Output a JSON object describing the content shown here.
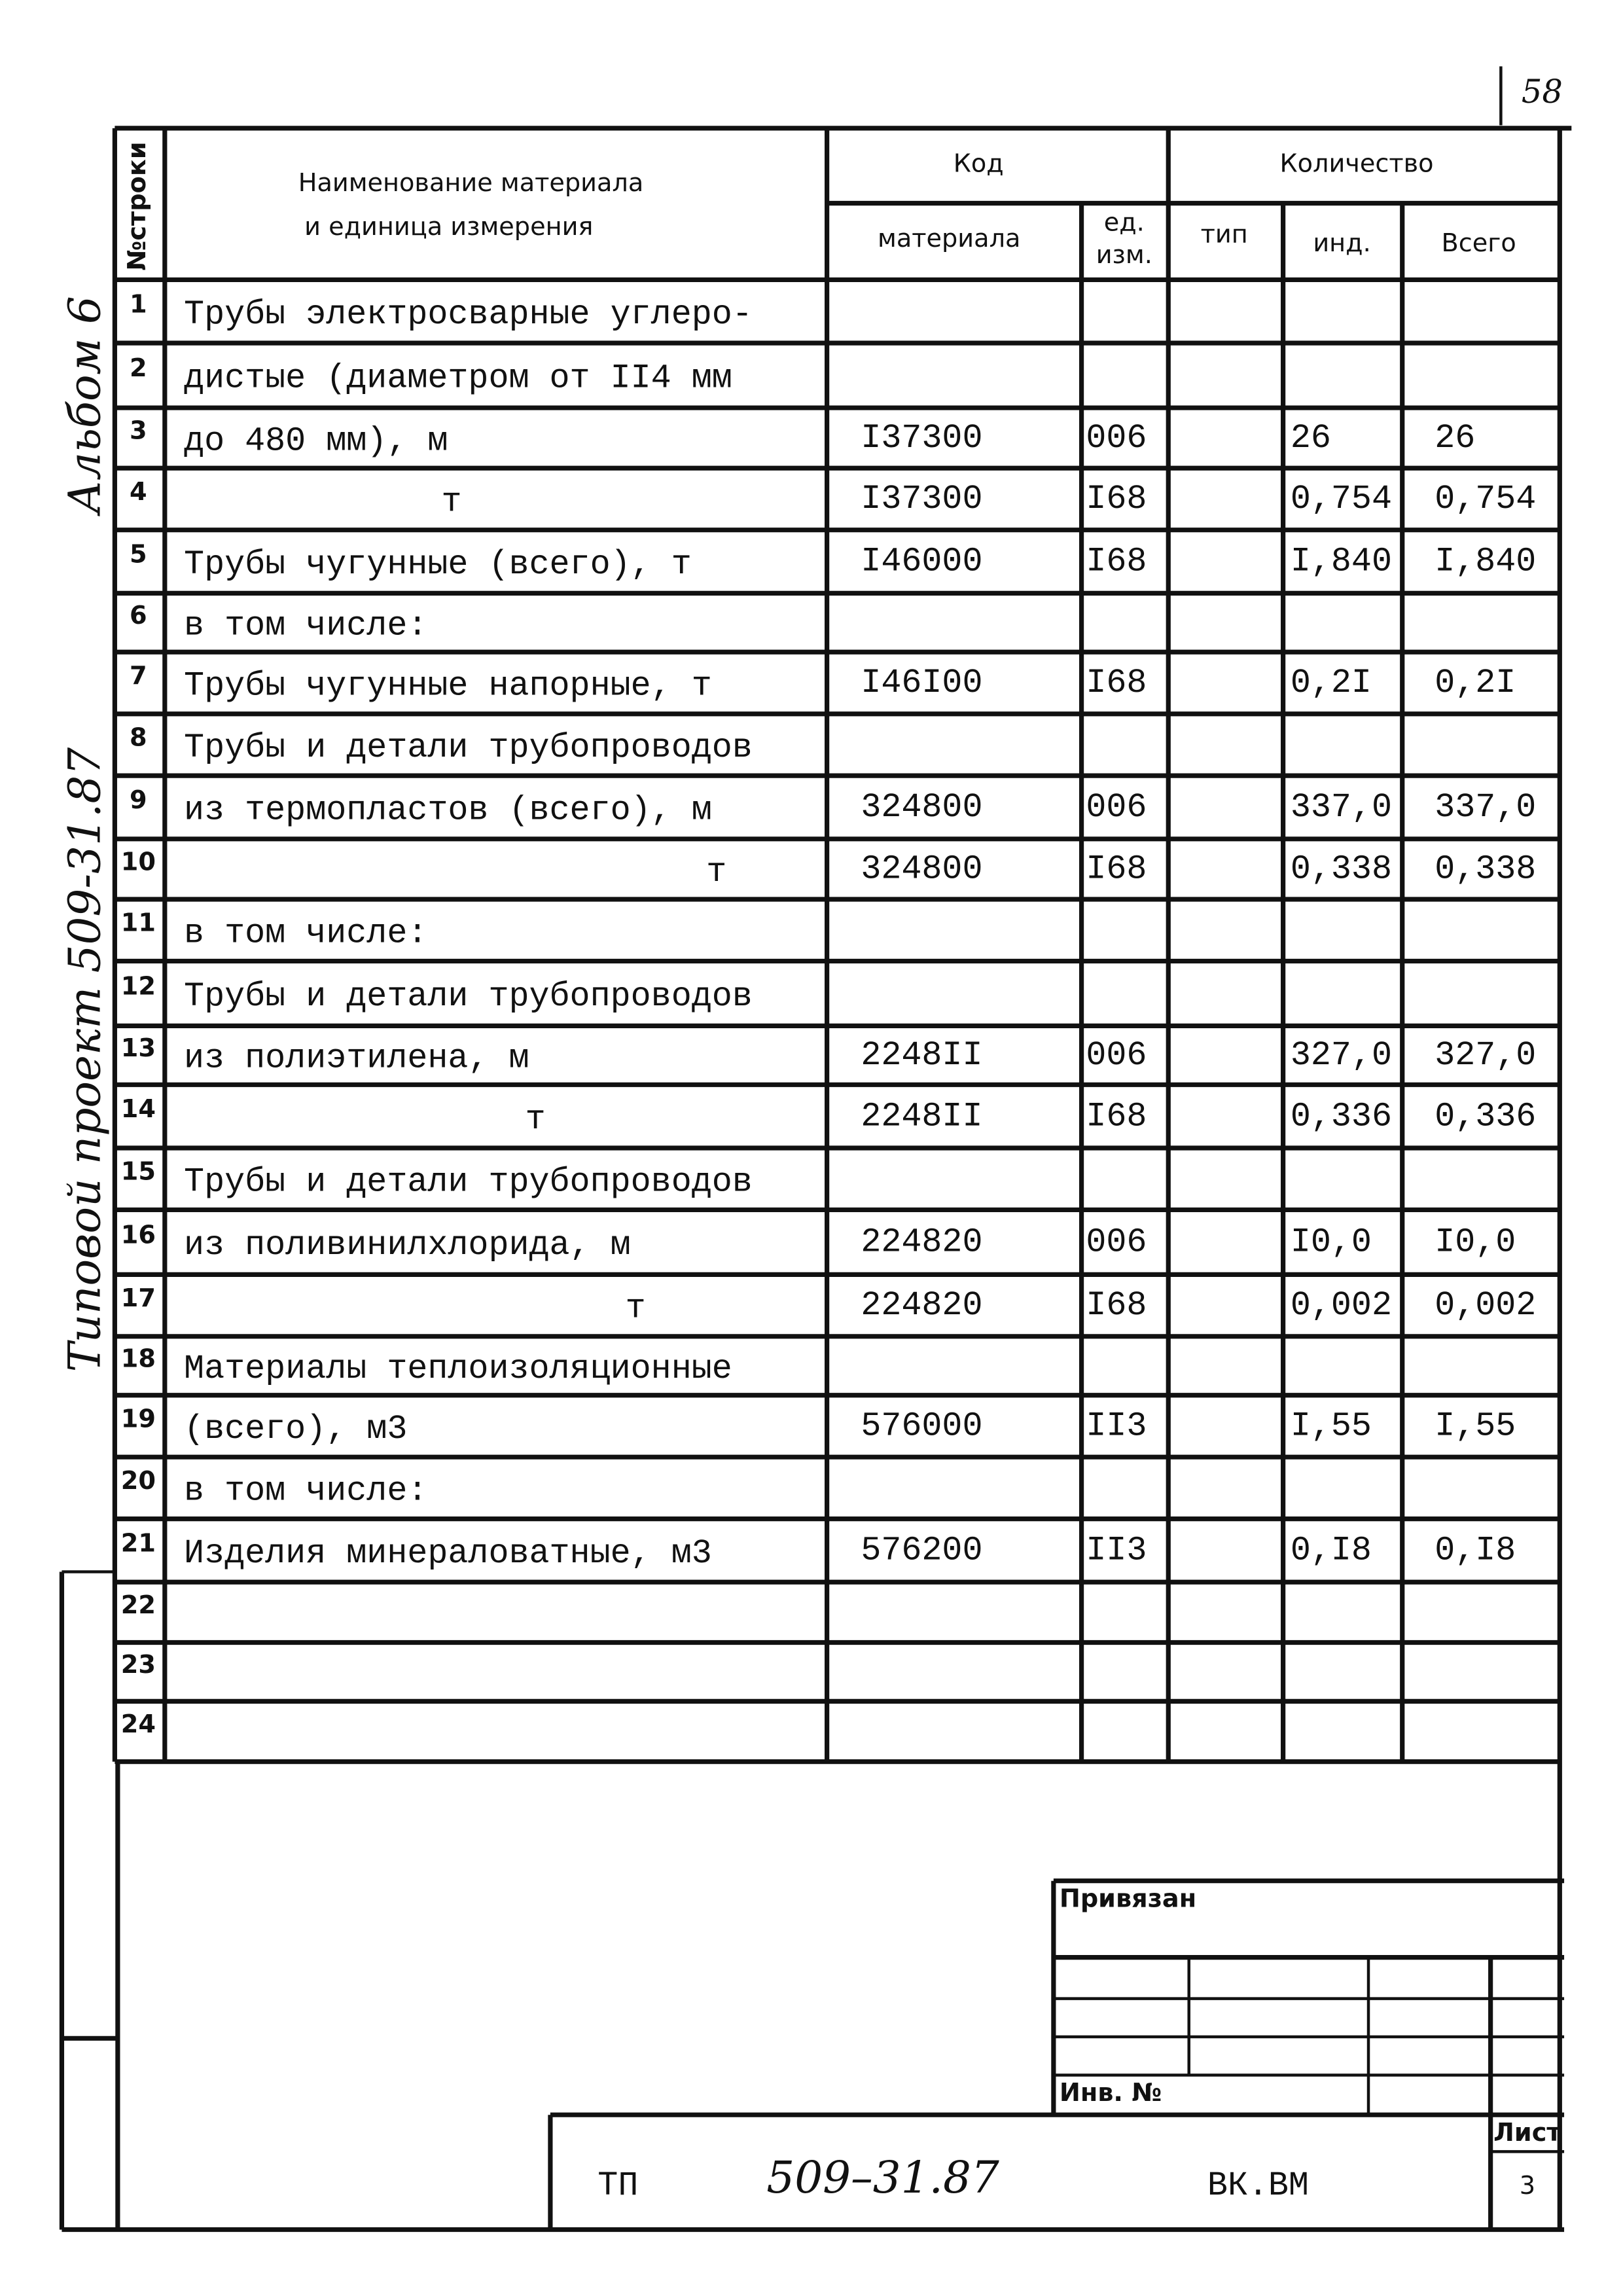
{
  "page_number": "58",
  "side_notes": [
    "Альбом 6",
    "Типовой проект 509-31.87"
  ],
  "table": {
    "headers": {
      "row_no": "№строки",
      "name": [
        "Наименование материала",
        "и единица  измерения"
      ],
      "code": "Код",
      "quantity": "Количество",
      "material": "материала",
      "unit": [
        "ед.",
        "изм."
      ],
      "type": "тип",
      "ind": "инд.",
      "total": "Всего"
    },
    "rows": [
      {
        "no": "1",
        "name": "Трубы электросварные углеро-"
      },
      {
        "no": "2",
        "name": "дистые (диаметром от II4 мм"
      },
      {
        "no": "3",
        "name": "до 480 мм), м",
        "material": "I37300",
        "unit": "006",
        "ind": "26",
        "total": "26"
      },
      {
        "no": "4",
        "name": "т",
        "material": "I37300",
        "unit": "I68",
        "ind": "0,754",
        "total": "0,754"
      },
      {
        "no": "5",
        "name": "Трубы чугунные (всего), т",
        "material": "I46000",
        "unit": "I68",
        "ind": "I,840",
        "total": "I,840"
      },
      {
        "no": "6",
        "name": "в том числе:"
      },
      {
        "no": "7",
        "name": "Трубы чугунные напорные, т",
        "material": "I46I00",
        "unit": "I68",
        "ind": "0,2I",
        "total": "0,2I"
      },
      {
        "no": "8",
        "name": "Трубы и детали трубопроводов"
      },
      {
        "no": "9",
        "name": "из термопластов (всего), м",
        "material": "324800",
        "unit": "006",
        "ind": "337,0",
        "total": "337,0"
      },
      {
        "no": "10",
        "name": "т",
        "material": "324800",
        "unit": "I68",
        "ind": "0,338",
        "total": "0,338"
      },
      {
        "no": "11",
        "name": "в том числе:"
      },
      {
        "no": "12",
        "name": "Трубы и детали трубопроводов"
      },
      {
        "no": "13",
        "name": "из полиэтилена, м",
        "material": "2248II",
        "unit": "006",
        "ind": "327,0",
        "total": "327,0"
      },
      {
        "no": "14",
        "name": "т",
        "material": "2248II",
        "unit": "I68",
        "ind": "0,336",
        "total": "0,336"
      },
      {
        "no": "15",
        "name": "Трубы и детали трубопроводов"
      },
      {
        "no": "16",
        "name": "из поливинилхлорида, м",
        "material": "224820",
        "unit": "006",
        "ind": "I0,0",
        "total": "I0,0"
      },
      {
        "no": "17",
        "name": "т",
        "material": "224820",
        "unit": "I68",
        "ind": "0,002",
        "total": "0,002"
      },
      {
        "no": "18",
        "name": "Материалы теплоизоляционные"
      },
      {
        "no": "19",
        "name": "(всего), м3",
        "material": "576000",
        "unit": "II3",
        "ind": "I,55",
        "total": "I,55"
      },
      {
        "no": "20",
        "name": "в том числе:"
      },
      {
        "no": "21",
        "name": "Изделия минераловатные, м3",
        "material": "576200",
        "unit": "II3",
        "ind": "0,I8",
        "total": "0,I8"
      },
      {
        "no": "22"
      },
      {
        "no": "23"
      },
      {
        "no": "24"
      }
    ]
  },
  "stamp": {
    "attached": "Привязан",
    "inventory": "Инв. №"
  },
  "title_block": {
    "series": "ТП",
    "project": "509–31.87",
    "code": "ВК.ВМ",
    "sheet_label": "Лист",
    "sheet": "3"
  }
}
